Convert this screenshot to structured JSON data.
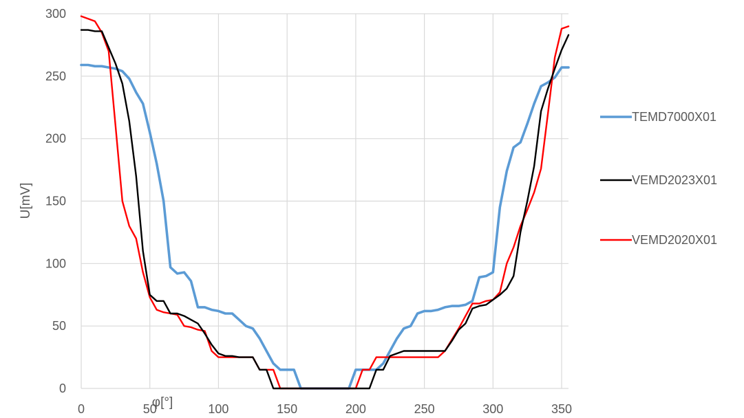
{
  "chart_data": {
    "type": "line",
    "title": "",
    "xlabel": "φ[°]",
    "ylabel": "U[mV]",
    "xlim": [
      0,
      355
    ],
    "ylim": [
      0,
      300
    ],
    "x_ticks": [
      0,
      50,
      100,
      150,
      200,
      250,
      300,
      350
    ],
    "y_ticks": [
      0,
      50,
      100,
      150,
      200,
      250,
      300
    ],
    "grid": "vertical and horizontal",
    "legend_position": "right",
    "series": [
      {
        "name": "TEMD7000X01",
        "color": "#5b9bd5",
        "points": [
          [
            0,
            259
          ],
          [
            5,
            259
          ],
          [
            10,
            258
          ],
          [
            15,
            258
          ],
          [
            20,
            257
          ],
          [
            25,
            256
          ],
          [
            30,
            254
          ],
          [
            35,
            248
          ],
          [
            40,
            237
          ],
          [
            45,
            228
          ],
          [
            50,
            205
          ],
          [
            55,
            180
          ],
          [
            60,
            150
          ],
          [
            65,
            97
          ],
          [
            70,
            92
          ],
          [
            75,
            93
          ],
          [
            80,
            86
          ],
          [
            85,
            65
          ],
          [
            90,
            65
          ],
          [
            95,
            63
          ],
          [
            100,
            62
          ],
          [
            105,
            60
          ],
          [
            110,
            60
          ],
          [
            115,
            55
          ],
          [
            120,
            50
          ],
          [
            125,
            48
          ],
          [
            130,
            40
          ],
          [
            135,
            30
          ],
          [
            140,
            20
          ],
          [
            145,
            15
          ],
          [
            150,
            15
          ],
          [
            155,
            15
          ],
          [
            160,
            0
          ],
          [
            165,
            0
          ],
          [
            170,
            0
          ],
          [
            175,
            0
          ],
          [
            180,
            0
          ],
          [
            185,
            0
          ],
          [
            190,
            0
          ],
          [
            195,
            0
          ],
          [
            200,
            15
          ],
          [
            205,
            15
          ],
          [
            210,
            15
          ],
          [
            215,
            15
          ],
          [
            220,
            20
          ],
          [
            225,
            30
          ],
          [
            230,
            40
          ],
          [
            235,
            48
          ],
          [
            240,
            50
          ],
          [
            245,
            60
          ],
          [
            250,
            62
          ],
          [
            255,
            62
          ],
          [
            260,
            63
          ],
          [
            265,
            65
          ],
          [
            270,
            66
          ],
          [
            275,
            66
          ],
          [
            280,
            67
          ],
          [
            285,
            70
          ],
          [
            290,
            89
          ],
          [
            295,
            90
          ],
          [
            300,
            93
          ],
          [
            305,
            145
          ],
          [
            310,
            174
          ],
          [
            315,
            193
          ],
          [
            320,
            197
          ],
          [
            325,
            212
          ],
          [
            330,
            228
          ],
          [
            335,
            242
          ],
          [
            340,
            245
          ],
          [
            345,
            249
          ],
          [
            350,
            257
          ],
          [
            355,
            257
          ]
        ]
      },
      {
        "name": "VEMD2023X01",
        "color": "#000000",
        "points": [
          [
            0,
            287
          ],
          [
            5,
            287
          ],
          [
            10,
            286
          ],
          [
            15,
            286
          ],
          [
            20,
            273
          ],
          [
            25,
            260
          ],
          [
            30,
            244
          ],
          [
            35,
            214
          ],
          [
            40,
            170
          ],
          [
            45,
            110
          ],
          [
            50,
            75
          ],
          [
            55,
            70
          ],
          [
            60,
            70
          ],
          [
            65,
            60
          ],
          [
            70,
            60
          ],
          [
            75,
            58
          ],
          [
            80,
            55
          ],
          [
            85,
            52
          ],
          [
            90,
            44
          ],
          [
            95,
            35
          ],
          [
            100,
            28
          ],
          [
            105,
            26
          ],
          [
            110,
            26
          ],
          [
            115,
            25
          ],
          [
            120,
            25
          ],
          [
            125,
            25
          ],
          [
            130,
            15
          ],
          [
            135,
            15
          ],
          [
            140,
            0
          ],
          [
            145,
            0
          ],
          [
            150,
            0
          ],
          [
            155,
            0
          ],
          [
            160,
            0
          ],
          [
            165,
            0
          ],
          [
            170,
            0
          ],
          [
            175,
            0
          ],
          [
            180,
            0
          ],
          [
            185,
            0
          ],
          [
            190,
            0
          ],
          [
            195,
            0
          ],
          [
            200,
            0
          ],
          [
            205,
            0
          ],
          [
            210,
            0
          ],
          [
            215,
            15
          ],
          [
            220,
            15
          ],
          [
            225,
            26
          ],
          [
            230,
            28
          ],
          [
            235,
            30
          ],
          [
            240,
            30
          ],
          [
            245,
            30
          ],
          [
            250,
            30
          ],
          [
            255,
            30
          ],
          [
            260,
            30
          ],
          [
            265,
            30
          ],
          [
            270,
            38
          ],
          [
            275,
            47
          ],
          [
            280,
            52
          ],
          [
            285,
            64
          ],
          [
            290,
            66
          ],
          [
            295,
            67
          ],
          [
            300,
            71
          ],
          [
            305,
            75
          ],
          [
            310,
            80
          ],
          [
            315,
            90
          ],
          [
            320,
            125
          ],
          [
            325,
            150
          ],
          [
            330,
            178
          ],
          [
            335,
            222
          ],
          [
            340,
            240
          ],
          [
            345,
            256
          ],
          [
            350,
            271
          ],
          [
            355,
            283
          ]
        ]
      },
      {
        "name": "VEMD2020X01",
        "color": "#ff0000",
        "points": [
          [
            0,
            298
          ],
          [
            5,
            296
          ],
          [
            10,
            294
          ],
          [
            15,
            285
          ],
          [
            20,
            270
          ],
          [
            25,
            210
          ],
          [
            30,
            150
          ],
          [
            35,
            130
          ],
          [
            40,
            120
          ],
          [
            45,
            93
          ],
          [
            50,
            73
          ],
          [
            55,
            63
          ],
          [
            60,
            61
          ],
          [
            65,
            60
          ],
          [
            70,
            59
          ],
          [
            75,
            50
          ],
          [
            80,
            49
          ],
          [
            85,
            47
          ],
          [
            90,
            46
          ],
          [
            95,
            30
          ],
          [
            100,
            25
          ],
          [
            105,
            25
          ],
          [
            110,
            25
          ],
          [
            115,
            25
          ],
          [
            120,
            25
          ],
          [
            125,
            25
          ],
          [
            130,
            15
          ],
          [
            135,
            15
          ],
          [
            140,
            15
          ],
          [
            145,
            0
          ],
          [
            150,
            0
          ],
          [
            155,
            0
          ],
          [
            160,
            0
          ],
          [
            165,
            0
          ],
          [
            170,
            0
          ],
          [
            175,
            0
          ],
          [
            180,
            0
          ],
          [
            185,
            0
          ],
          [
            190,
            0
          ],
          [
            195,
            0
          ],
          [
            200,
            0
          ],
          [
            205,
            15
          ],
          [
            210,
            15
          ],
          [
            215,
            25
          ],
          [
            220,
            25
          ],
          [
            225,
            25
          ],
          [
            230,
            25
          ],
          [
            235,
            25
          ],
          [
            240,
            25
          ],
          [
            245,
            25
          ],
          [
            250,
            25
          ],
          [
            255,
            25
          ],
          [
            260,
            25
          ],
          [
            265,
            30
          ],
          [
            270,
            39
          ],
          [
            275,
            48
          ],
          [
            280,
            58
          ],
          [
            285,
            68
          ],
          [
            290,
            68
          ],
          [
            295,
            70
          ],
          [
            300,
            71
          ],
          [
            305,
            77
          ],
          [
            310,
            100
          ],
          [
            315,
            113
          ],
          [
            320,
            130
          ],
          [
            325,
            143
          ],
          [
            330,
            157
          ],
          [
            335,
            176
          ],
          [
            340,
            220
          ],
          [
            345,
            265
          ],
          [
            350,
            288
          ],
          [
            355,
            290
          ]
        ]
      }
    ]
  }
}
